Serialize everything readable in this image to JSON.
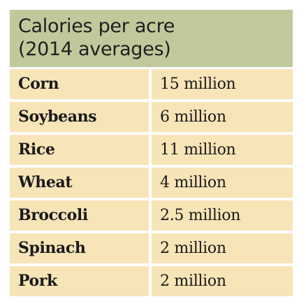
{
  "chart_data": {
    "type": "table",
    "title_lines": [
      "Calories per acre",
      "(2014 averages)"
    ],
    "rows": [
      {
        "crop": "Corn",
        "calories_text": "15 million",
        "calories": 15000000
      },
      {
        "crop": "Soybeans",
        "calories_text": "6 million",
        "calories": 6000000
      },
      {
        "crop": "Rice",
        "calories_text": "11 million",
        "calories": 11000000
      },
      {
        "crop": "Wheat",
        "calories_text": "4 million",
        "calories": 4000000
      },
      {
        "crop": "Broccoli",
        "calories_text": "2.5 million",
        "calories": 2500000
      },
      {
        "crop": "Spinach",
        "calories_text": "2 million",
        "calories": 2000000
      },
      {
        "crop": "Pork",
        "calories_text": "2 million",
        "calories": 2000000
      }
    ]
  },
  "colors": {
    "header_background": "#bfc99b",
    "row_background": "#f7e4b7",
    "text": "#1a1a1a"
  }
}
